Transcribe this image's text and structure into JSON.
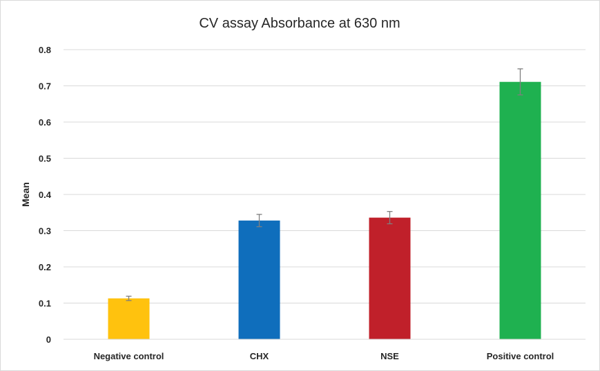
{
  "chart_data": {
    "type": "bar",
    "title": "CV assay Absorbance  at 630 nm",
    "xlabel": "",
    "ylabel": "Mean",
    "categories": [
      "Negative control",
      "CHX",
      "NSE",
      "Positive control"
    ],
    "values": [
      0.113,
      0.328,
      0.336,
      0.711
    ],
    "errors": [
      0.006,
      0.017,
      0.017,
      0.036
    ],
    "colors": [
      "#FFC20E",
      "#0F6EBC",
      "#C0202A",
      "#1FB150"
    ],
    "error_color": "#7f7f7f",
    "ylim": [
      0,
      0.8
    ],
    "yticks": [
      "0",
      "0.1",
      "0.2",
      "0.3",
      "0.4",
      "0.5",
      "0.6",
      "0.7",
      "0.8"
    ],
    "grid": true,
    "legend": "none"
  }
}
